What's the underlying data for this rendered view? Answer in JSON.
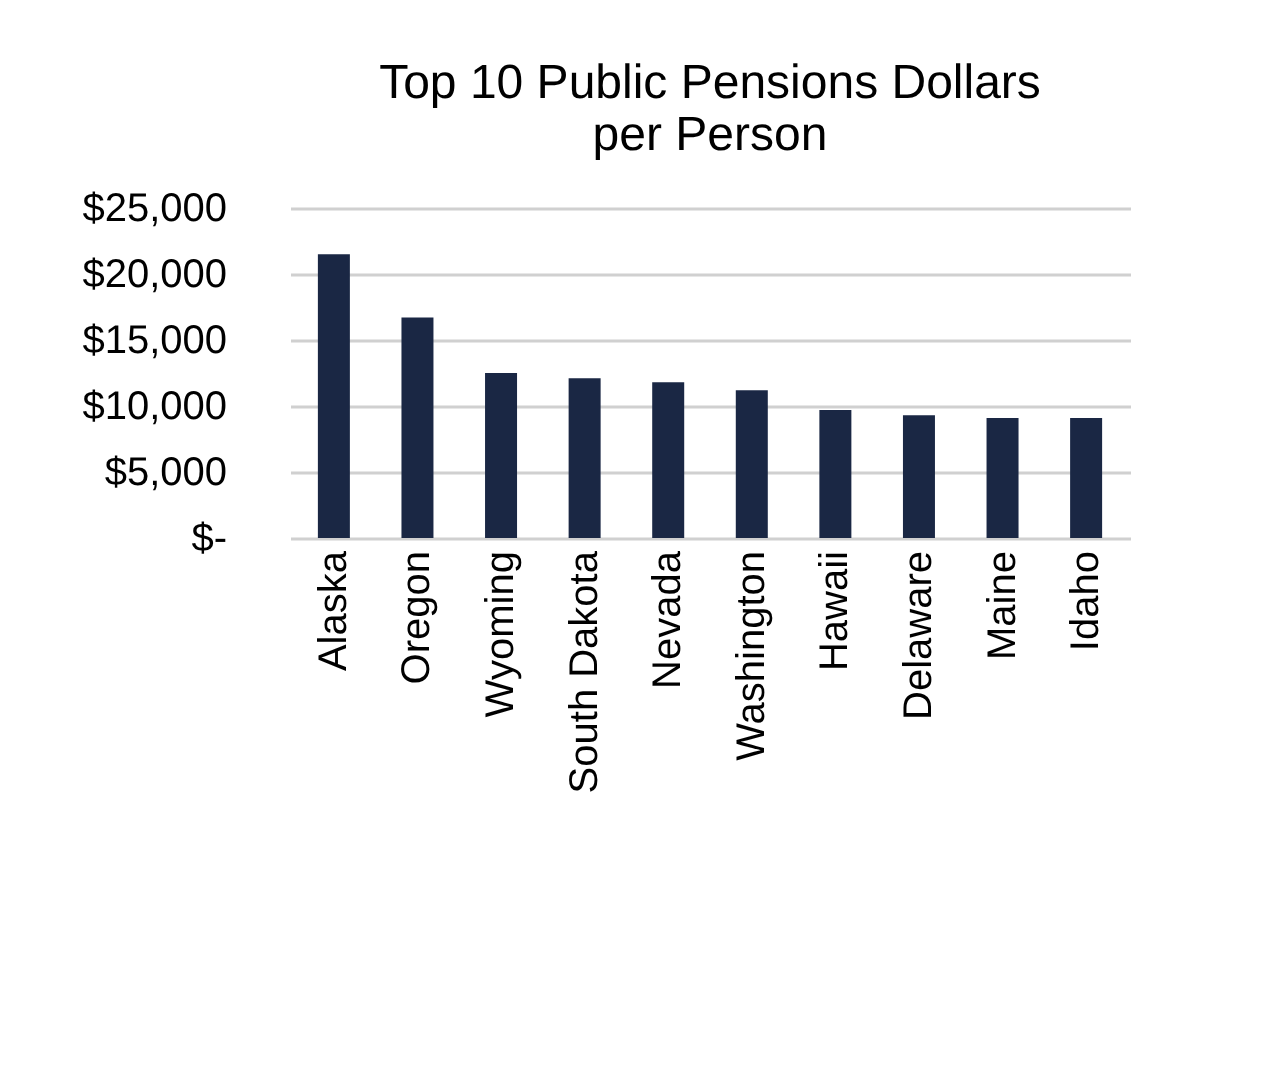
{
  "chart_data": {
    "type": "bar",
    "title": "Top 10 Public Pensions Dollars per Person",
    "categories": [
      "Alaska",
      "Oregon",
      "Wyoming",
      "South Dakota",
      "Nevada",
      "Washington",
      "Hawaii",
      "Delaware",
      "Maine",
      "Idaho"
    ],
    "values": [
      21500,
      16700,
      12500,
      12100,
      11800,
      11200,
      9700,
      9300,
      9100,
      9100
    ],
    "color": "#1a2744",
    "ylim": [
      0,
      25000
    ],
    "yticks": [
      {
        "value": 0,
        "label": "$-"
      },
      {
        "value": 5000,
        "label": "$5,000"
      },
      {
        "value": 10000,
        "label": "$10,000"
      },
      {
        "value": 15000,
        "label": "$15,000"
      },
      {
        "value": 20000,
        "label": "$20,000"
      },
      {
        "value": 25000,
        "label": "$25,000"
      }
    ],
    "grid": "y"
  }
}
